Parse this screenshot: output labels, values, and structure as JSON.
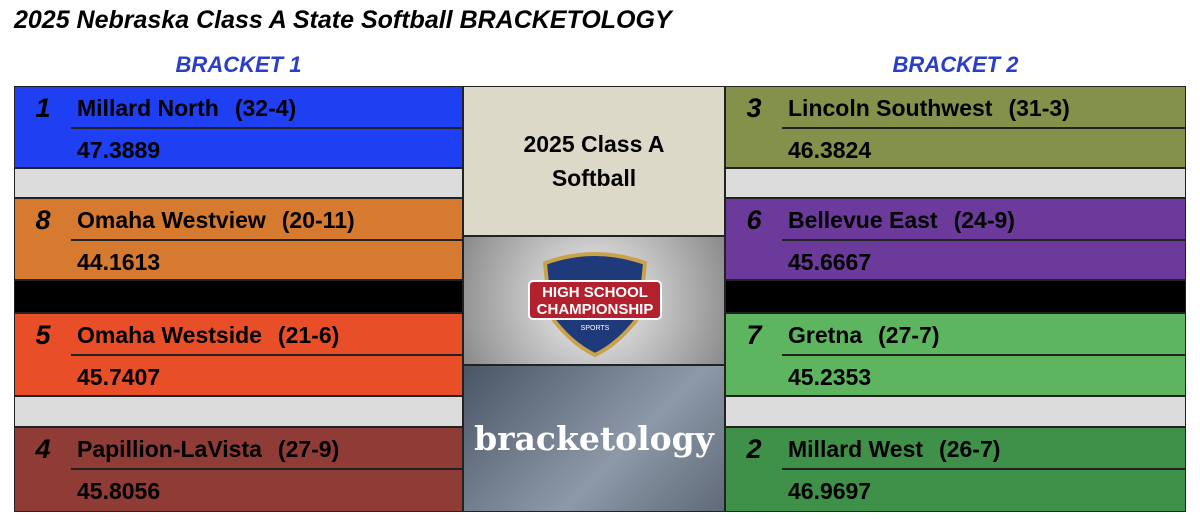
{
  "header": {
    "title": "2025 Nebraska Class A State Softball BRACKETOLOGY"
  },
  "brackets": [
    {
      "label": "BRACKET 1",
      "teams": [
        {
          "seed": "1",
          "name": "Millard North",
          "record": "(32-4)",
          "rating": "47.3889",
          "color": "#1f3ff2"
        },
        {
          "seed": "8",
          "name": "Omaha Westview",
          "record": "(20-11)",
          "rating": "44.1613",
          "color": "#d67a30"
        },
        {
          "seed": "5",
          "name": "Omaha Westside",
          "record": "(21-6)",
          "rating": "45.7407",
          "color": "#e84f28"
        },
        {
          "seed": "4",
          "name": "Papillion-LaVista",
          "record": "(27-9)",
          "rating": "45.8056",
          "color": "#8e3c35"
        }
      ]
    },
    {
      "label": "BRACKET 2",
      "teams": [
        {
          "seed": "3",
          "name": "Lincoln Southwest",
          "record": "(31-3)",
          "rating": "46.3824",
          "color": "#83914a"
        },
        {
          "seed": "6",
          "name": "Bellevue East",
          "record": "(24-9)",
          "rating": "45.6667",
          "color": "#6b3a9a"
        },
        {
          "seed": "7",
          "name": "Gretna",
          "record": "(27-7)",
          "rating": "45.2353",
          "color": "#5db560"
        },
        {
          "seed": "2",
          "name": "Millard West",
          "record": "(26-7)",
          "rating": "46.9697",
          "color": "#3f9048"
        }
      ]
    }
  ],
  "center": {
    "title": "2025 Class A Softball",
    "logo": "HIGH SCHOOL CHAMPIONSHIP",
    "logo_sub": "SPORTS",
    "image_text": "bracketology"
  }
}
